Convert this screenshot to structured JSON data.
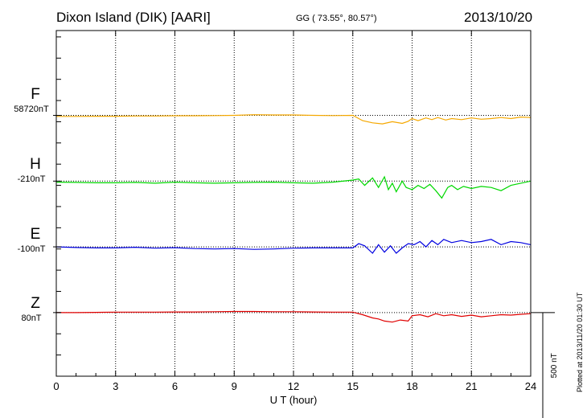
{
  "header": {
    "station": "Dixon Island (DIK)  [AARI]",
    "coords": "GG ( 73.55°,  80.57°)",
    "date": "2013/10/20"
  },
  "footer": {
    "plotted": "Plotted at 2013/11/20 01:30 UT"
  },
  "colors": {
    "F": "#f5a800",
    "H": "#00d800",
    "E": "#0000e0",
    "Z": "#e00000",
    "grid": "#000000"
  },
  "chart_data": {
    "type": "line",
    "xlabel": "U T (hour)",
    "xlim": [
      0,
      24
    ],
    "xticks": [
      0,
      3,
      6,
      9,
      12,
      15,
      18,
      21,
      24
    ],
    "grid": true,
    "scale_bar": {
      "label": "500 nT",
      "value": 500
    },
    "ylim_nT": [
      -1230,
      400
    ],
    "series": [
      {
        "name": "F",
        "baseline_label": "58720nT",
        "baseline_nT": 0,
        "x": [
          0,
          1,
          2,
          3,
          4,
          5,
          6,
          7,
          8,
          9,
          10,
          11,
          12,
          13,
          14,
          15,
          15.5,
          16,
          16.5,
          17,
          17.5,
          17.8,
          18,
          18.3,
          18.7,
          19,
          19.3,
          19.7,
          20,
          20.5,
          21,
          21.5,
          22,
          22.5,
          23,
          23.5,
          24
        ],
        "values": [
          -5,
          -5,
          -4,
          -4,
          -3,
          -3,
          -2,
          -2,
          -1,
          0,
          3,
          2,
          2,
          0,
          -1,
          0,
          -25,
          -35,
          -40,
          -30,
          -38,
          -28,
          -15,
          -25,
          -12,
          -20,
          -10,
          -22,
          -15,
          -20,
          -12,
          -18,
          -15,
          -10,
          -15,
          -8,
          -10
        ]
      },
      {
        "name": "H",
        "baseline_label": "-210nT",
        "baseline_nT": -310,
        "x": [
          0,
          1,
          2,
          3,
          4,
          5,
          6,
          7,
          8,
          9,
          10,
          11,
          12,
          13,
          14,
          15,
          15.3,
          15.6,
          16,
          16.3,
          16.6,
          16.8,
          17,
          17.2,
          17.5,
          17.7,
          18,
          18.3,
          18.6,
          18.9,
          19.2,
          19.5,
          19.8,
          20,
          20.3,
          20.6,
          21,
          21.5,
          22,
          22.5,
          23,
          23.5,
          24
        ],
        "values": [
          -5,
          -6,
          -8,
          -8,
          -6,
          -10,
          -5,
          -8,
          -10,
          -8,
          -6,
          -5,
          -8,
          -10,
          -5,
          5,
          10,
          -20,
          15,
          -30,
          20,
          -40,
          -10,
          -50,
          0,
          -30,
          -40,
          -20,
          -35,
          -15,
          -45,
          -80,
          -30,
          -20,
          -40,
          -25,
          -35,
          -25,
          -30,
          -45,
          -20,
          -10,
          0
        ]
      },
      {
        "name": "E",
        "baseline_label": "-100nT",
        "baseline_nT": -620,
        "x": [
          0,
          1,
          2,
          3,
          4,
          5,
          6,
          7,
          8,
          9,
          10,
          11,
          12,
          13,
          14,
          15,
          15.3,
          15.6,
          16,
          16.3,
          16.6,
          16.9,
          17.2,
          17.5,
          17.8,
          18.1,
          18.4,
          18.7,
          19,
          19.3,
          19.6,
          20,
          20.5,
          21,
          21.5,
          22,
          22.5,
          23,
          23.5,
          24
        ],
        "values": [
          0,
          -3,
          -5,
          -5,
          -2,
          -6,
          -4,
          -8,
          -10,
          -8,
          -12,
          -10,
          -6,
          -5,
          -5,
          -5,
          15,
          5,
          -30,
          10,
          -25,
          5,
          -30,
          -5,
          15,
          10,
          25,
          0,
          30,
          10,
          35,
          20,
          30,
          20,
          25,
          35,
          10,
          25,
          20,
          10
        ]
      },
      {
        "name": "Z",
        "baseline_label": "80nT",
        "baseline_nT": -930,
        "x": [
          0,
          1,
          2,
          3,
          4,
          5,
          6,
          7,
          8,
          9,
          10,
          11,
          12,
          13,
          14,
          15,
          15.5,
          16,
          16.3,
          16.6,
          17,
          17.4,
          17.8,
          18,
          18.4,
          18.8,
          19.2,
          19.6,
          20,
          20.5,
          21,
          21.5,
          22,
          22.5,
          23,
          23.5,
          24
        ],
        "values": [
          0,
          0,
          1,
          2,
          2,
          2,
          3,
          3,
          4,
          5,
          5,
          4,
          4,
          3,
          2,
          2,
          -10,
          -25,
          -30,
          -40,
          -45,
          -35,
          -40,
          -15,
          -10,
          -20,
          -5,
          -15,
          -10,
          -18,
          -12,
          -20,
          -15,
          -10,
          -12,
          -8,
          -5
        ]
      }
    ]
  }
}
